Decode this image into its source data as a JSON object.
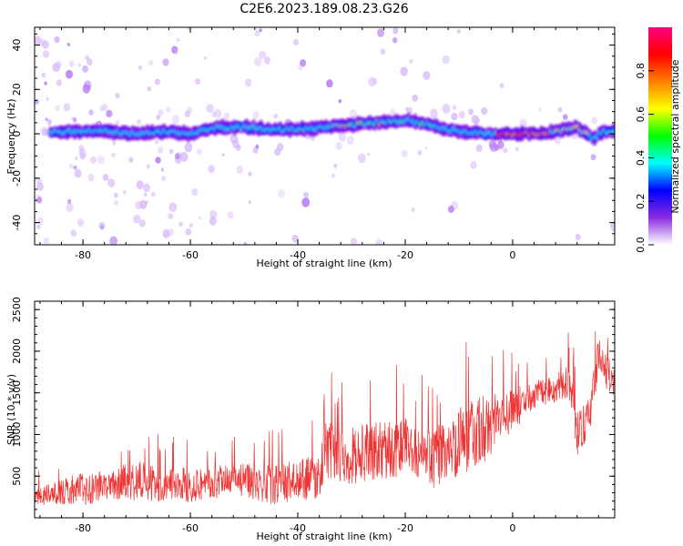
{
  "title": "C2E6.2023.189.08.23.G26",
  "chart_data": [
    {
      "type": "heatmap",
      "xlabel": "Height of straight line (km)",
      "ylabel": "Frequency (Hz)",
      "xlim": [
        -89,
        19
      ],
      "ylim": [
        -50,
        48
      ],
      "xticks": [
        -80,
        -60,
        -40,
        -20,
        0
      ],
      "yticks": [
        -40,
        -20,
        0,
        20,
        40
      ],
      "ridge_center": [
        [
          -85,
          1
        ],
        [
          -80,
          1
        ],
        [
          -75,
          1
        ],
        [
          -70,
          0
        ],
        [
          -65,
          1
        ],
        [
          -60,
          0
        ],
        [
          -55,
          3
        ],
        [
          -50,
          3
        ],
        [
          -45,
          2
        ],
        [
          -40,
          2
        ],
        [
          -35,
          3
        ],
        [
          -30,
          4
        ],
        [
          -25,
          5
        ],
        [
          -20,
          6
        ],
        [
          -17,
          5
        ],
        [
          -14,
          3
        ],
        [
          -10,
          1
        ],
        [
          -5,
          0
        ],
        [
          0,
          0
        ],
        [
          5,
          0
        ],
        [
          8,
          1
        ],
        [
          12,
          3
        ],
        [
          15,
          -2
        ],
        [
          17,
          1
        ],
        [
          19,
          1
        ]
      ],
      "colorbar": {
        "label": "Normalized spectral amplitude",
        "min": 0,
        "max": 1,
        "ticks": [
          "0.0",
          "0.2",
          "0.4",
          "0.6",
          "0.8"
        ],
        "colors": [
          "#ffffff",
          "#8a2be2",
          "#0000ff",
          "#00ffff",
          "#00ff00",
          "#ffff00",
          "#ff8000",
          "#ff0000",
          "#ff0080"
        ]
      }
    },
    {
      "type": "line",
      "xlabel": "Height of straight line (km)",
      "ylabel": "SNR (10 * v/v)",
      "xlim": [
        -89,
        19
      ],
      "ylim": [
        0,
        2600
      ],
      "xticks": [
        -80,
        -60,
        -40,
        -20,
        0
      ],
      "yticks": [
        500,
        1000,
        1500,
        2000,
        2500
      ],
      "color": "#ee3333",
      "envelope": {
        "x": [
          -89,
          -85,
          -80,
          -75,
          -70,
          -65,
          -60,
          -55,
          -50,
          -45,
          -40,
          -36,
          -35,
          -30,
          -25,
          -20,
          -15,
          -10,
          -5,
          0,
          5,
          8,
          10,
          11,
          12,
          14,
          15,
          16,
          17,
          19
        ],
        "mean": [
          250,
          300,
          350,
          400,
          450,
          380,
          400,
          420,
          450,
          400,
          450,
          500,
          800,
          750,
          800,
          850,
          700,
          900,
          1100,
          1300,
          1500,
          1550,
          1650,
          1500,
          1000,
          1200,
          1500,
          2000,
          1800,
          1600
        ],
        "spread": [
          150,
          200,
          300,
          250,
          350,
          300,
          300,
          300,
          300,
          350,
          350,
          400,
          500,
          500,
          500,
          500,
          500,
          600,
          600,
          350,
          250,
          250,
          300,
          400,
          400,
          400,
          400,
          300,
          300,
          300
        ]
      }
    }
  ]
}
